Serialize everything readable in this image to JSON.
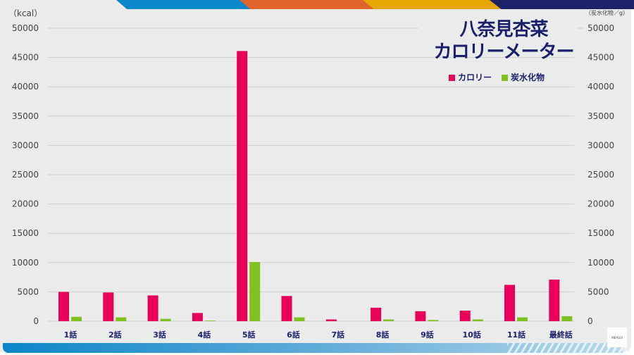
{
  "chart_data": {
    "type": "bar",
    "title": "八奈見杏菜\nカロリーメーター",
    "title_lines": [
      "八奈見杏菜",
      "カロリーメーター"
    ],
    "ylabel_left": "（kcal）",
    "ylabel_right": "（炭水化物／g）",
    "ylim": [
      0,
      50000
    ],
    "yticks": [
      0,
      5000,
      10000,
      15000,
      20000,
      25000,
      30000,
      35000,
      40000,
      45000,
      50000
    ],
    "grid": true,
    "legend_position": "top-right",
    "categories": [
      "1話",
      "2話",
      "3話",
      "4話",
      "5話",
      "6話",
      "7話",
      "8話",
      "9話",
      "10話",
      "11話",
      "最終話"
    ],
    "series": [
      {
        "name": "カロリー",
        "color": "#e8005a",
        "values": [
          5000,
          4900,
          4400,
          1400,
          46100,
          4300,
          300,
          2300,
          1700,
          1800,
          6200,
          7100
        ]
      },
      {
        "name": "炭水化物",
        "color": "#7dc21e",
        "values": [
          750,
          650,
          400,
          100,
          10100,
          650,
          0,
          300,
          200,
          300,
          650,
          850
        ]
      }
    ]
  },
  "decor": {
    "top_stripe_colors": [
      "#0a88cc",
      "#e0632a",
      "#e6a800",
      "#1c2168"
    ],
    "logo_text": "ANIPLEX"
  }
}
